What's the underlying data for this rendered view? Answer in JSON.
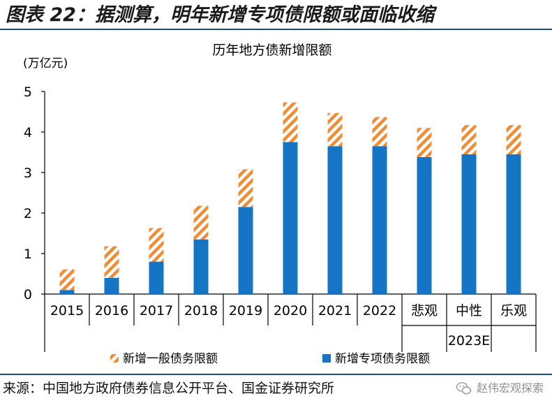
{
  "figure": {
    "title": "图表 22：据测算，明年新增专项债限额或面临收缩",
    "source": "来源：中国地方政府债券信息公开平台、国金证券研究所",
    "watermark": "赵伟宏观探索"
  },
  "colors": {
    "special_bond": "#1475c4",
    "general_bond_stripe": "#ef8d35",
    "axis": "#000000",
    "rule": "#1f4e79"
  },
  "chart_data": {
    "type": "bar",
    "stacked": true,
    "title": "历年地方债新增限额",
    "ylabel": "(万亿元)",
    "xlabel": "",
    "ylim": [
      0,
      5
    ],
    "yticks": [
      0,
      1,
      2,
      3,
      4,
      5
    ],
    "grid": false,
    "legend_position": "bottom",
    "categories": [
      "2015",
      "2016",
      "2017",
      "2018",
      "2019",
      "2020",
      "2021",
      "2022",
      "悲观",
      "中性",
      "乐观"
    ],
    "category_group": {
      "label": "2023E",
      "members": [
        "悲观",
        "中性",
        "乐观"
      ]
    },
    "series": [
      {
        "name": "新增专项债务限额",
        "values": [
          0.1,
          0.4,
          0.8,
          1.35,
          2.15,
          3.75,
          3.65,
          3.65,
          3.38,
          3.45,
          3.45
        ]
      },
      {
        "name": "新增一般债务限额",
        "values": [
          0.51,
          0.78,
          0.83,
          0.83,
          0.93,
          0.98,
          0.82,
          0.72,
          0.72,
          0.72,
          0.72
        ]
      }
    ],
    "legend": [
      {
        "name": "新增一般债务限额",
        "style": "stripe"
      },
      {
        "name": "新增专项债务限额",
        "style": "solid"
      }
    ]
  }
}
